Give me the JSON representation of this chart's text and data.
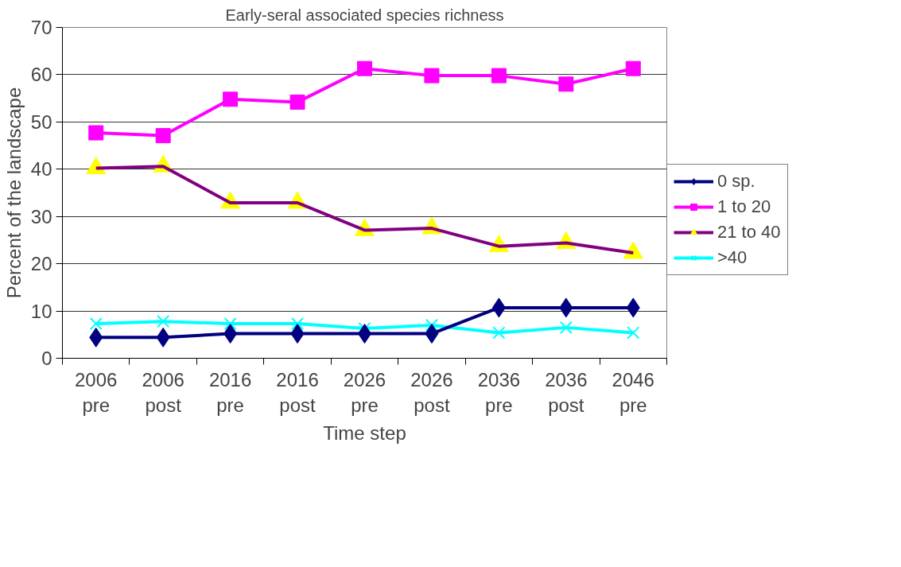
{
  "chart_data": {
    "type": "line",
    "title": "Early-seral associated species richness",
    "xlabel": "Time step",
    "ylabel": "Percent of the landscape",
    "categories": [
      "2006\npre",
      "2006\npost",
      "2016\npre",
      "2016\npost",
      "2026\npre",
      "2026\npost",
      "2036\npre",
      "2036\npost",
      "2046\npre"
    ],
    "series": [
      {
        "name": "0 sp.",
        "color": "#000080",
        "marker": "diamond",
        "values": [
          4.4,
          4.4,
          5.2,
          5.2,
          5.2,
          5.2,
          10.7,
          10.7,
          10.7
        ]
      },
      {
        "name": "1 to 20",
        "color": "#ff00ff",
        "marker": "square",
        "values": [
          47.7,
          47.1,
          54.8,
          54.2,
          61.3,
          59.8,
          59.8,
          58.0,
          61.3
        ]
      },
      {
        "name": "21 to 40",
        "color": "#800080",
        "marker": "triangle",
        "colors": [
          "#ffff00",
          "#ffff00",
          "#ffff00",
          "#ffff00",
          "#ffff00",
          "#ffff00",
          "#ffff00",
          "#ffff00",
          "#ffff00"
        ],
        "values": [
          40.2,
          40.6,
          32.9,
          32.9,
          27.1,
          27.5,
          23.7,
          24.4,
          22.3
        ]
      },
      {
        "name": ">40",
        "color": "#00ffff",
        "marker": "x",
        "values": [
          7.3,
          7.8,
          7.3,
          7.3,
          6.3,
          7.0,
          5.4,
          6.5,
          5.4
        ]
      }
    ],
    "ylim": [
      0,
      70
    ],
    "yticks": [
      0,
      10,
      20,
      30,
      40,
      50,
      60,
      70
    ],
    "grid": "y",
    "legend": "right",
    "line_style": "solid"
  }
}
